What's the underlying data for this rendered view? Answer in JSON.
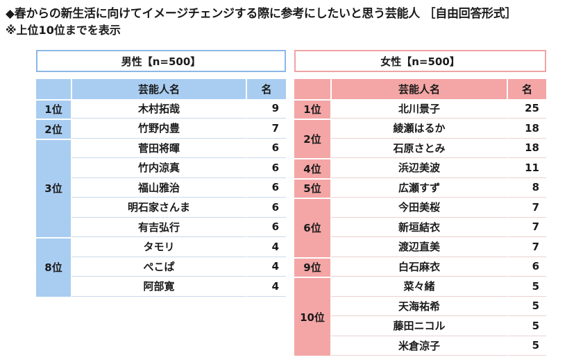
{
  "title": "◆春からの新生活に向けてイメージチェンジする際に参考にしたいと思う芸能人 ［自由回答形式］",
  "subtitle": "※上位10位までを表示",
  "columns": {
    "name": "芸能人名",
    "count": "名"
  },
  "male": {
    "header": "男性【n=500】",
    "groups": [
      {
        "rank": "1位",
        "rows": [
          {
            "name": "木村拓哉",
            "count": "9"
          }
        ]
      },
      {
        "rank": "2位",
        "rows": [
          {
            "name": "竹野内豊",
            "count": "7"
          }
        ]
      },
      {
        "rank": "3位",
        "rows": [
          {
            "name": "菅田将暉",
            "count": "6"
          },
          {
            "name": "竹内涼真",
            "count": "6"
          },
          {
            "name": "福山雅治",
            "count": "6"
          },
          {
            "name": "明石家さんま",
            "count": "6"
          },
          {
            "name": "有吉弘行",
            "count": "6"
          }
        ]
      },
      {
        "rank": "8位",
        "rows": [
          {
            "name": "タモリ",
            "count": "4"
          },
          {
            "name": "ぺこぱ",
            "count": "4"
          },
          {
            "name": "阿部寛",
            "count": "4"
          }
        ]
      }
    ]
  },
  "female": {
    "header": "女性【n=500】",
    "groups": [
      {
        "rank": "1位",
        "rows": [
          {
            "name": "北川景子",
            "count": "25"
          }
        ]
      },
      {
        "rank": "2位",
        "rows": [
          {
            "name": "綾瀬はるか",
            "count": "18"
          },
          {
            "name": "石原さとみ",
            "count": "18"
          }
        ]
      },
      {
        "rank": "4位",
        "rows": [
          {
            "name": "浜辺美波",
            "count": "11"
          }
        ]
      },
      {
        "rank": "5位",
        "rows": [
          {
            "name": "広瀬すず",
            "count": "8"
          }
        ]
      },
      {
        "rank": "6位",
        "rows": [
          {
            "name": "今田美桜",
            "count": "7"
          },
          {
            "name": "新垣結衣",
            "count": "7"
          },
          {
            "name": "渡辺直美",
            "count": "7"
          }
        ]
      },
      {
        "rank": "9位",
        "rows": [
          {
            "name": "白石麻衣",
            "count": "6"
          }
        ]
      },
      {
        "rank": "10位",
        "rows": [
          {
            "name": "菜々緒",
            "count": "5"
          },
          {
            "name": "天海祐希",
            "count": "5"
          },
          {
            "name": "藤田ニコル",
            "count": "5"
          },
          {
            "name": "米倉涼子",
            "count": "5"
          }
        ]
      }
    ]
  }
}
